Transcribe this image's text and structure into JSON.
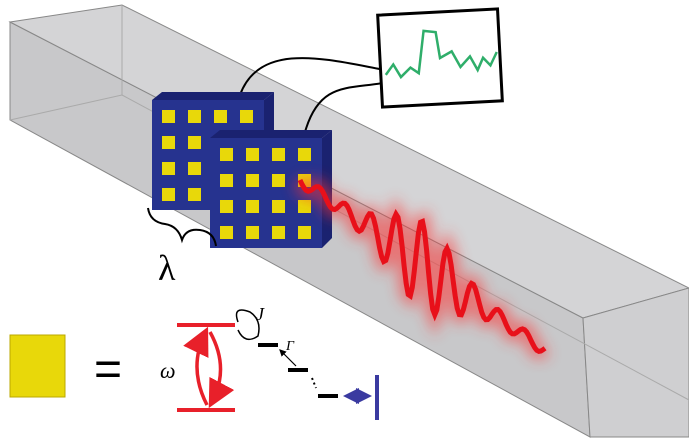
{
  "labels": {
    "wavelength": "λ",
    "frequency": "ω",
    "coupling": "J",
    "decay": "Γ",
    "equals": "="
  }
}
